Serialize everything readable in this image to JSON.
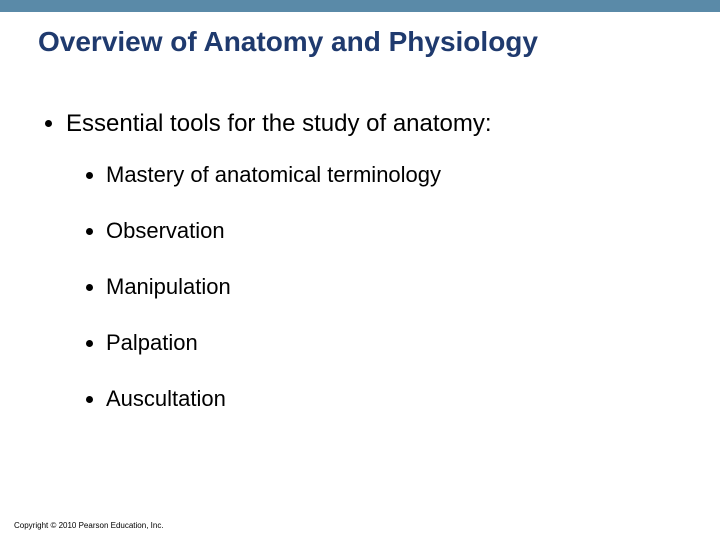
{
  "colors": {
    "bar": "#5a8aa8",
    "title": "#1f3a6e",
    "body_text": "#000000",
    "background": "#ffffff"
  },
  "title": "Overview of Anatomy and Physiology",
  "main_bullet": "Essential tools for the study of anatomy:",
  "sub_bullets": [
    "Mastery of anatomical terminology",
    "Observation",
    "Manipulation",
    "Palpation",
    "Auscultation"
  ],
  "copyright": "Copyright © 2010 Pearson Education, Inc."
}
